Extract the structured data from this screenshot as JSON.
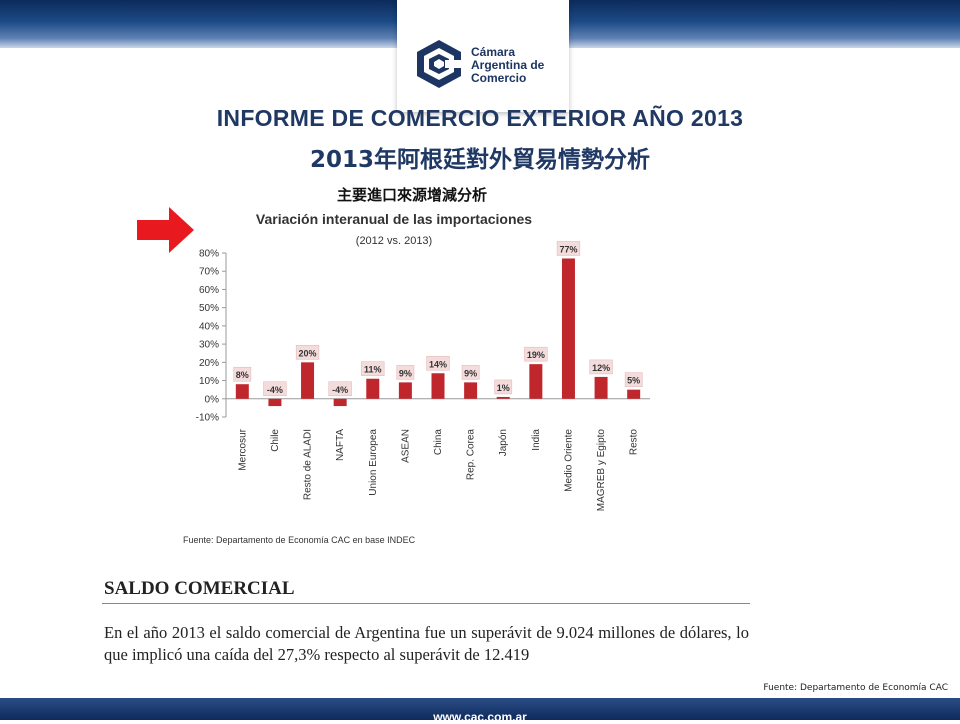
{
  "header": {
    "logo_lines": [
      "Cámara",
      "Argentina de",
      "Comercio"
    ],
    "title_es": "INFORME DE COMERCIO EXTERIOR AÑO 2013",
    "title_zh": "2013年阿根廷對外貿易情勢分析"
  },
  "section": {
    "chart_heading_zh": "主要進口來源增減分析"
  },
  "chart_data": {
    "type": "bar",
    "title": "Variación interanual de las importaciones",
    "subtitle": "(2012 vs. 2013)",
    "categories": [
      "Mercosur",
      "Chile",
      "Resto de ALADI",
      "NAFTA",
      "Union Europea",
      "ASEAN",
      "China",
      "Rep. Corea",
      "Japón",
      "India",
      "Medio Oriente",
      "MAGREB y Egipto",
      "Resto"
    ],
    "values": [
      8,
      -4,
      20,
      -4,
      11,
      9,
      14,
      9,
      1,
      19,
      77,
      12,
      5
    ],
    "data_labels": [
      "8%",
      "-4%",
      "20%",
      "-4%",
      "11%",
      "9%",
      "14%",
      "9%",
      "1%",
      "19%",
      "77%",
      "12%",
      "5%"
    ],
    "y_ticks": [
      80,
      70,
      60,
      50,
      40,
      30,
      20,
      10,
      0,
      -10
    ],
    "y_tick_labels": [
      "80%",
      "70%",
      "60%",
      "50%",
      "40%",
      "30%",
      "20%",
      "10%",
      "0%",
      "-10%"
    ],
    "ylim": [
      -10,
      80
    ],
    "grid": false,
    "bar_color": "#c0272d",
    "source": "Fuente: Departamento de Economía CAC en base  INDEC"
  },
  "saldo": {
    "title": "SALDO COMERCIAL",
    "text": "En el año 2013 el saldo comercial de Argentina fue un superávit de 9.024 millones de dólares, lo que implicó una caída del 27,3% respecto al superávit de 12.419"
  },
  "footer": {
    "source": "Fuente: Departamento de Economía CAC",
    "url": "www.cac.com.ar"
  },
  "colors": {
    "navy": "#1f3864",
    "arrow_red": "#e8191f"
  }
}
